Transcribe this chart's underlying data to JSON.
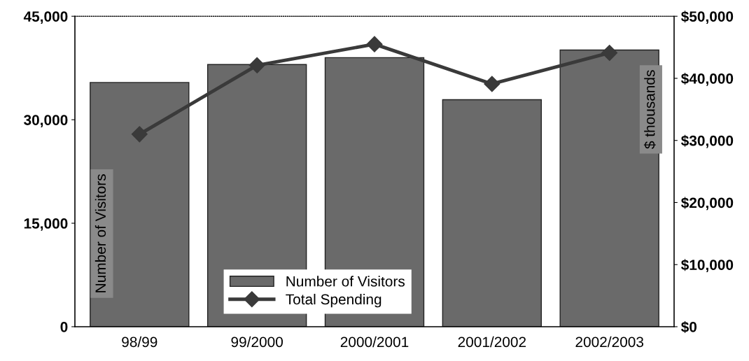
{
  "chart_data": {
    "type": "bar",
    "categories": [
      "98/99",
      "99/2000",
      "2000/2001",
      "2001/2002",
      "2002/2003"
    ],
    "series": [
      {
        "name": "Number of Visitors",
        "color": "#6a6a6a",
        "values": [
          35400,
          38000,
          39000,
          32900,
          40100
        ]
      },
      {
        "name": "Total Spending",
        "type": "line",
        "axis": "y2",
        "color": "#3a3a3a",
        "marker": "diamond",
        "values": [
          31000,
          42100,
          45500,
          39100,
          44100
        ]
      }
    ],
    "ylabel": "Number of Visitors",
    "y2label": "$ thousands",
    "ylim": [
      0,
      45000
    ],
    "yticks": [
      {
        "value": 0,
        "label": "0"
      },
      {
        "value": 15000,
        "label": "15,000"
      },
      {
        "value": 30000,
        "label": "30,000"
      },
      {
        "value": 45000,
        "label": "45,000"
      }
    ],
    "y2lim": [
      0,
      50000
    ],
    "y2ticks": [
      {
        "value": 0,
        "label": "$0"
      },
      {
        "value": 10000,
        "label": "$10,000"
      },
      {
        "value": 20000,
        "label": "$20,000"
      },
      {
        "value": 30000,
        "label": "$30,000"
      },
      {
        "value": 40000,
        "label": "$40,000"
      },
      {
        "value": 50000,
        "label": "$50,000"
      }
    ],
    "legend": "bottom",
    "grid": false
  }
}
